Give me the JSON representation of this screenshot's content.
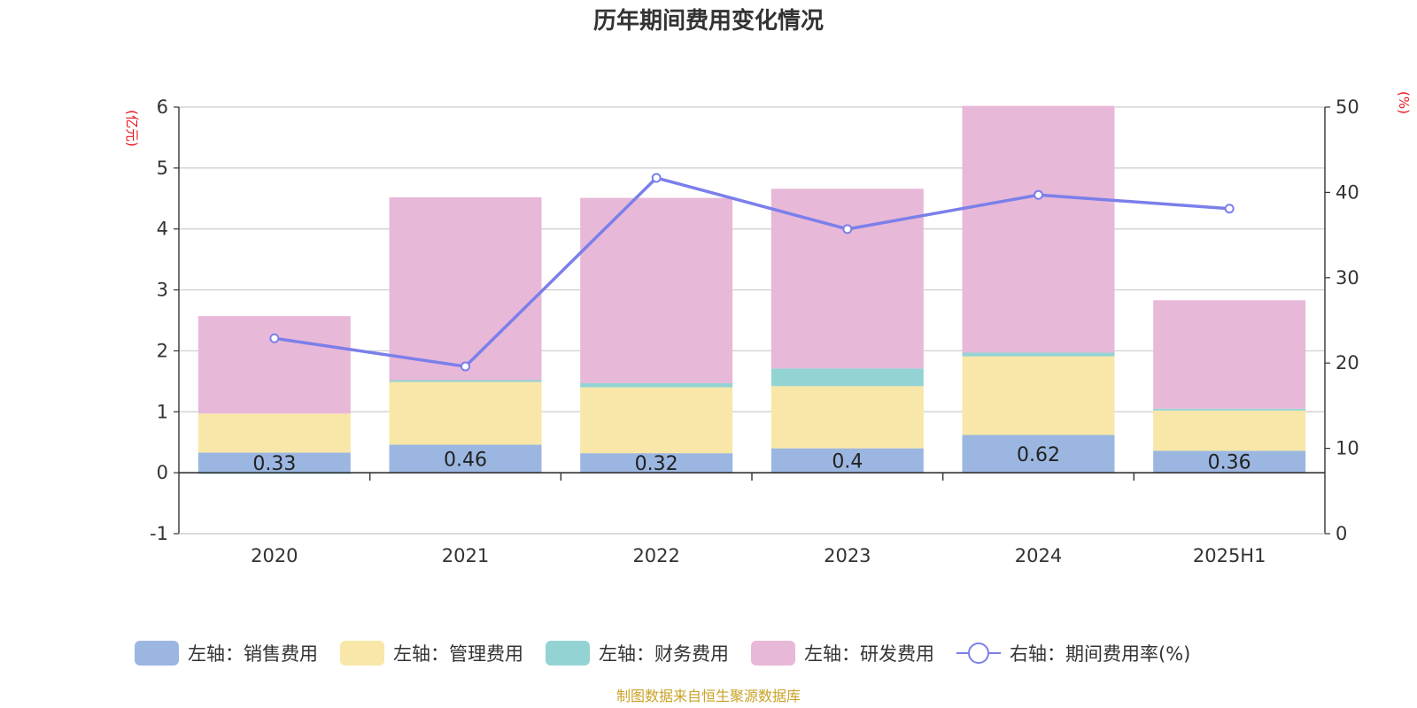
{
  "chart_data": {
    "type": "bar",
    "title": "历年期间费用变化情况",
    "categories": [
      "2020",
      "2021",
      "2022",
      "2023",
      "2024",
      "2025H1"
    ],
    "left_axis": {
      "unit": "(亿元)",
      "ylim": [
        -1,
        6
      ],
      "ticks": [
        -1,
        0,
        1,
        2,
        3,
        4,
        5,
        6
      ]
    },
    "right_axis": {
      "unit": "(%)",
      "ylim": [
        0,
        50
      ],
      "ticks": [
        0,
        10,
        20,
        30,
        40,
        50
      ]
    },
    "grid": true,
    "stacked": true,
    "series": [
      {
        "name": "左轴：销售费用",
        "color": "#9bb6e1",
        "axis": "left",
        "values": [
          0.33,
          0.46,
          0.32,
          0.4,
          0.62,
          0.36
        ],
        "labels": [
          "0.33",
          "0.46",
          "0.32",
          "0.4",
          "0.62",
          "0.36"
        ]
      },
      {
        "name": "左轴：管理费用",
        "color": "#f8e7a8",
        "axis": "left",
        "values": [
          0.64,
          1.03,
          1.08,
          1.02,
          1.29,
          0.66
        ]
      },
      {
        "name": "左轴：财务费用",
        "color": "#94d3d3",
        "axis": "left",
        "values": [
          -0.02,
          0.03,
          0.07,
          0.29,
          0.06,
          0.03
        ]
      },
      {
        "name": "左轴：研发费用",
        "color": "#e8b8d8",
        "axis": "left",
        "values": [
          1.6,
          3.0,
          3.04,
          2.95,
          4.05,
          1.78
        ]
      },
      {
        "name": "右轴：期间费用率(%)",
        "color": "#7b7fea",
        "axis": "right",
        "type": "line",
        "values": [
          22.9,
          19.6,
          41.7,
          35.7,
          39.7,
          38.1
        ]
      }
    ],
    "legend_position": "bottom"
  },
  "source_text": "制图数据来自恒生聚源数据库"
}
